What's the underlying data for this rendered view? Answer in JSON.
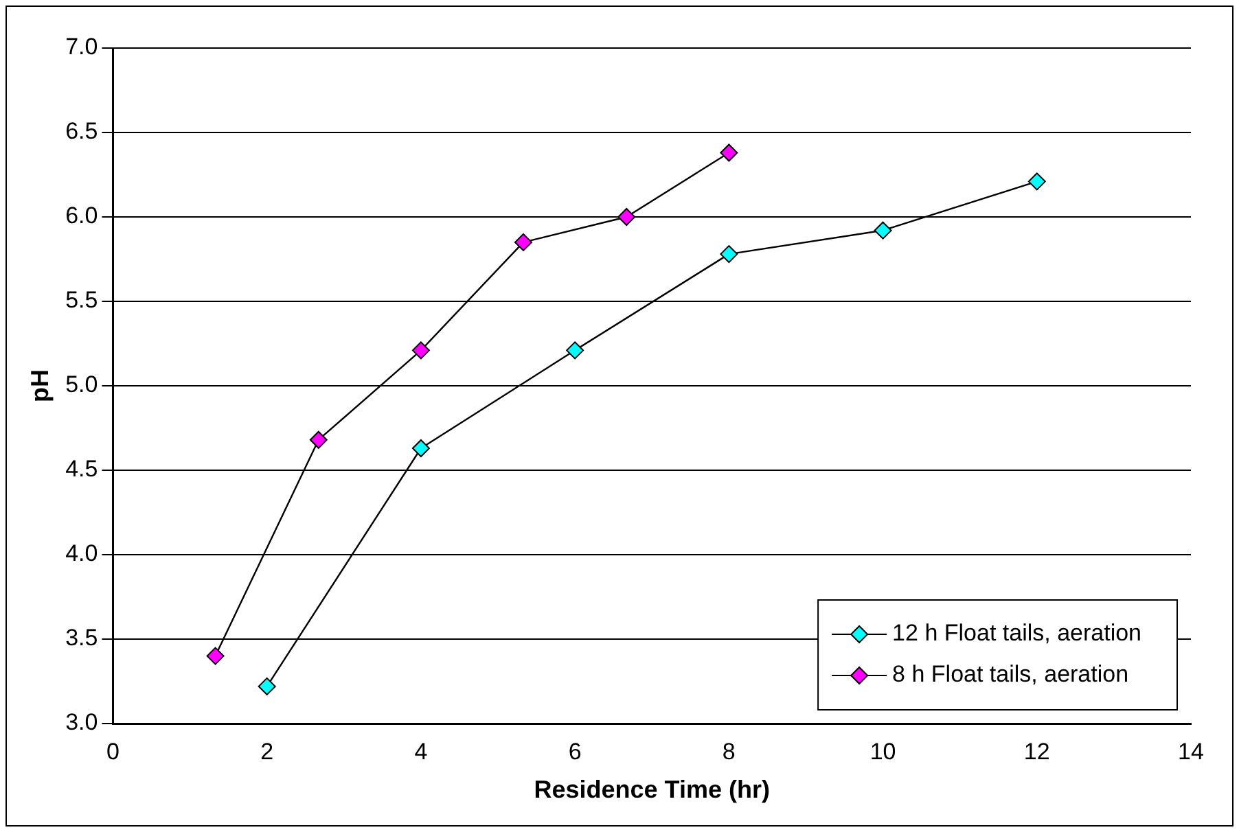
{
  "chart_data": {
    "type": "line",
    "xlabel": "Residence Time (hr)",
    "ylabel": "pH",
    "series": [
      {
        "name": "12 h Float tails, aeration",
        "color": "#00ffff",
        "x": [
          2,
          4,
          6,
          8,
          10,
          12
        ],
        "values": [
          3.22,
          4.63,
          5.21,
          5.78,
          5.92,
          6.21
        ]
      },
      {
        "name": "8 h Float tails, aeration",
        "color": "#ff00ff",
        "x": [
          1.33,
          2.67,
          4,
          5.33,
          6.67,
          8
        ],
        "values": [
          3.4,
          4.68,
          5.21,
          5.85,
          6.0,
          6.38
        ]
      }
    ],
    "xlim": [
      0,
      14
    ],
    "xticks": [
      0,
      2,
      4,
      6,
      8,
      10,
      12,
      14
    ],
    "ylim": [
      3,
      7
    ],
    "yticks": [
      {
        "value": 3,
        "label": "3.0"
      },
      {
        "value": 3.5,
        "label": "3.5"
      },
      {
        "value": 4,
        "label": "4.0"
      },
      {
        "value": 4.5,
        "label": "4.5"
      },
      {
        "value": 5,
        "label": "5.0"
      },
      {
        "value": 5.5,
        "label": "5.5"
      },
      {
        "value": 6,
        "label": "6.0"
      },
      {
        "value": 6.5,
        "label": "6.5"
      },
      {
        "value": 7,
        "label": "7.0"
      }
    ],
    "grid": "y",
    "legend": "bottom right",
    "marker": "diamond",
    "line_style": "solid"
  }
}
